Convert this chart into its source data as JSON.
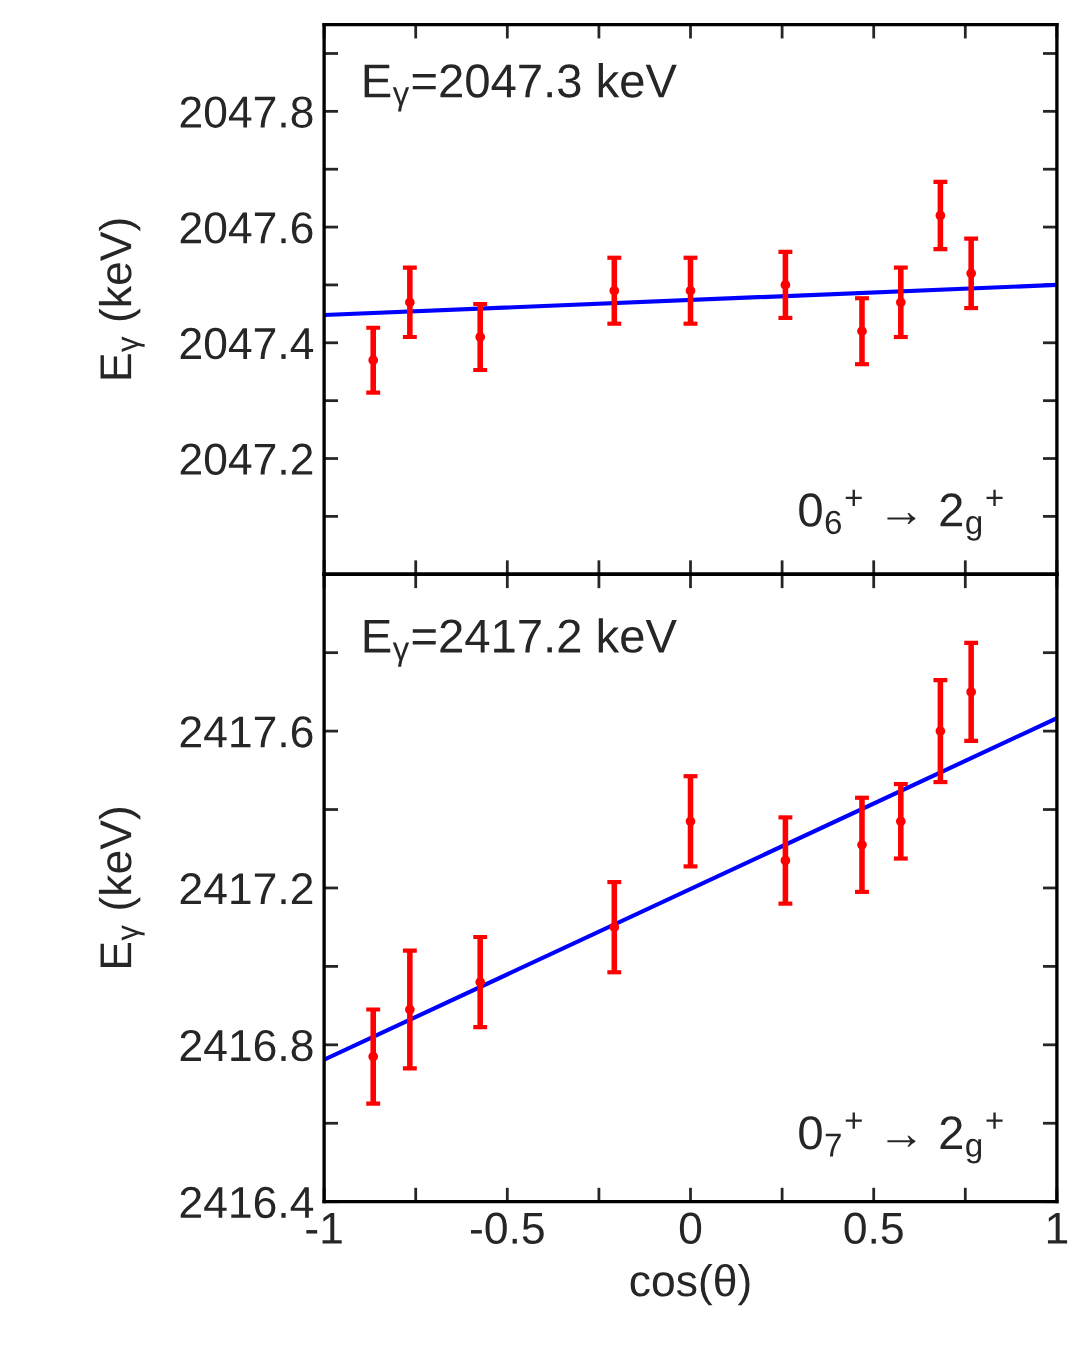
{
  "chart_data": [
    {
      "type": "scatter",
      "ylabel": "E$_{γ}$ (keV)",
      "annotations": [
        "E$_{γ}$=2047.3 keV",
        "0$_{6}$$^{+}$ → 2$_{g}$$^{+}$"
      ],
      "xlim": [
        -1,
        1
      ],
      "xticks": [
        {
          "value": -1,
          "label": null
        },
        {
          "value": -0.75,
          "label": null
        },
        {
          "value": -0.5,
          "label": null
        },
        {
          "value": -0.25,
          "label": null
        },
        {
          "value": 0,
          "label": null
        },
        {
          "value": 0.25,
          "label": null
        },
        {
          "value": 0.5,
          "label": null
        },
        {
          "value": 0.75,
          "label": null
        },
        {
          "value": 1,
          "label": null
        }
      ],
      "ylim": [
        2047.0,
        2047.95
      ],
      "yticks": [
        {
          "value": 2047.1,
          "label": null
        },
        2047.2,
        {
          "value": 2047.3,
          "label": null
        },
        2047.4,
        {
          "value": 2047.5,
          "label": null
        },
        2047.6,
        {
          "value": 2047.7,
          "label": null
        },
        2047.8,
        {
          "value": 2047.9,
          "label": null
        }
      ],
      "tick_labels": "y",
      "grid": false,
      "legend": false,
      "series": [
        {
          "color": "#ff0000",
          "marker": "circle",
          "x": [
            -0.866,
            -0.766,
            -0.574,
            -0.208,
            0.0,
            0.259,
            0.468,
            0.574,
            0.682,
            0.766
          ],
          "values": [
            2047.37,
            2047.47,
            2047.41,
            2047.49,
            2047.49,
            2047.5,
            2047.42,
            2047.47,
            2047.62,
            2047.52
          ],
          "errors": [
            0.056,
            0.06,
            0.057,
            0.057,
            0.057,
            0.057,
            0.057,
            0.06,
            0.058,
            0.06
          ]
        },
        {
          "type": "line",
          "color": "#0000ff",
          "marker": "none",
          "line_style": "solid",
          "x": [
            -1,
            1
          ],
          "values": [
            2047.448,
            2047.5
          ]
        }
      ]
    },
    {
      "type": "scatter",
      "xlabel": "cos(θ)",
      "ylabel": "E$_{γ}$ (keV)",
      "annotations": [
        "E$_{γ}$=2417.2 keV",
        "0$_{7}$$^{+}$ → 2$_{g}$$^{+}$"
      ],
      "xlim": [
        -1,
        1
      ],
      "xticks": [
        -1,
        {
          "value": -0.75,
          "label": null
        },
        -0.5,
        {
          "value": -0.25,
          "label": null
        },
        0,
        {
          "value": 0.25,
          "label": null
        },
        0.5,
        {
          "value": 0.75,
          "label": null
        },
        1
      ],
      "ylim": [
        2416.4,
        2418.0
      ],
      "yticks": [
        2416.4,
        {
          "value": 2416.6,
          "label": null
        },
        2416.8,
        {
          "value": 2417.0,
          "label": null
        },
        2417.2,
        {
          "value": 2417.4,
          "label": null
        },
        2417.6,
        {
          "value": 2417.8,
          "label": null
        }
      ],
      "grid": false,
      "legend": false,
      "series": [
        {
          "color": "#ff0000",
          "marker": "circle",
          "x": [
            -0.866,
            -0.766,
            -0.574,
            -0.208,
            0.0,
            0.259,
            0.468,
            0.574,
            0.682,
            0.766
          ],
          "values": [
            2416.77,
            2416.89,
            2416.96,
            2417.1,
            2417.37,
            2417.27,
            2417.31,
            2417.37,
            2417.6,
            2417.7
          ],
          "errors": [
            0.12,
            0.15,
            0.115,
            0.115,
            0.115,
            0.11,
            0.12,
            0.095,
            0.13,
            0.125
          ]
        },
        {
          "type": "line",
          "color": "#0000ff",
          "marker": "none",
          "line_style": "solid",
          "x": [
            -1,
            1
          ],
          "values": [
            2416.762,
            2417.633
          ]
        }
      ]
    }
  ]
}
